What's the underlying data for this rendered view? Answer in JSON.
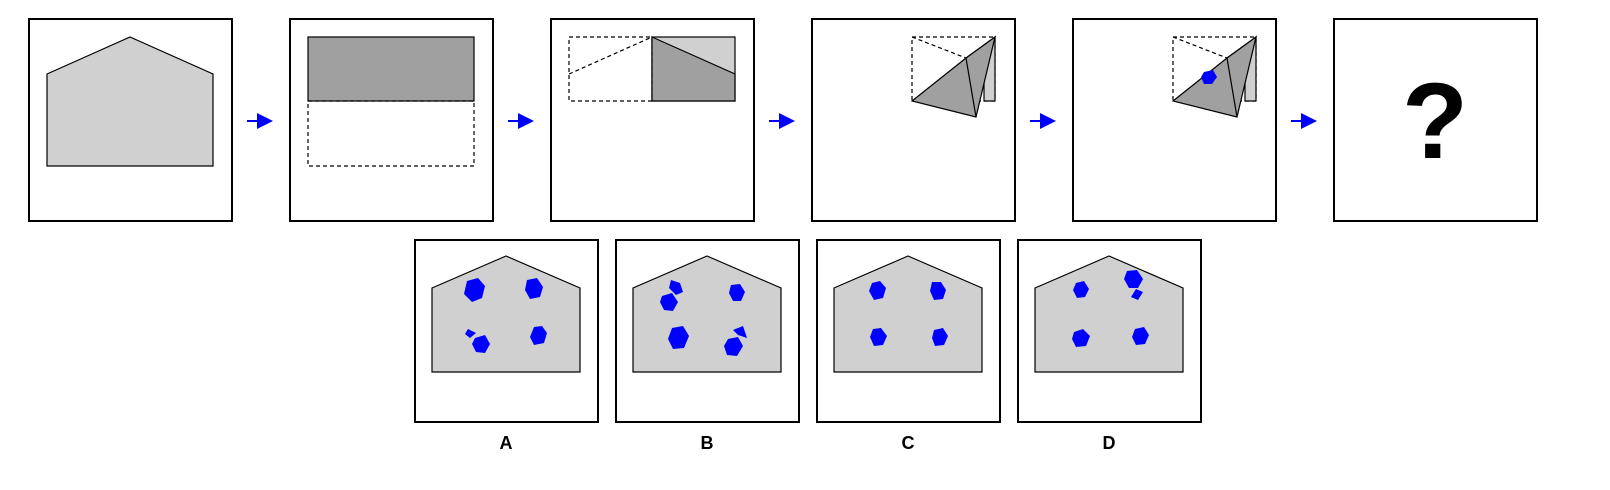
{
  "puzzle": {
    "question_mark": "?",
    "arrow_color": "#0000ff",
    "paper_color": "#d0d0d0",
    "folded_color": "#a0a0a0",
    "hole_color": "#0000ff",
    "steps": [
      {
        "kind": "paper-outline"
      },
      {
        "kind": "fold-top-half-down"
      },
      {
        "kind": "fold-left-half-right"
      },
      {
        "kind": "diagonal-fold"
      },
      {
        "kind": "punch-hole"
      },
      {
        "kind": "question"
      }
    ]
  },
  "options": [
    {
      "label": "A"
    },
    {
      "label": "B"
    },
    {
      "label": "C"
    },
    {
      "label": "D"
    }
  ]
}
